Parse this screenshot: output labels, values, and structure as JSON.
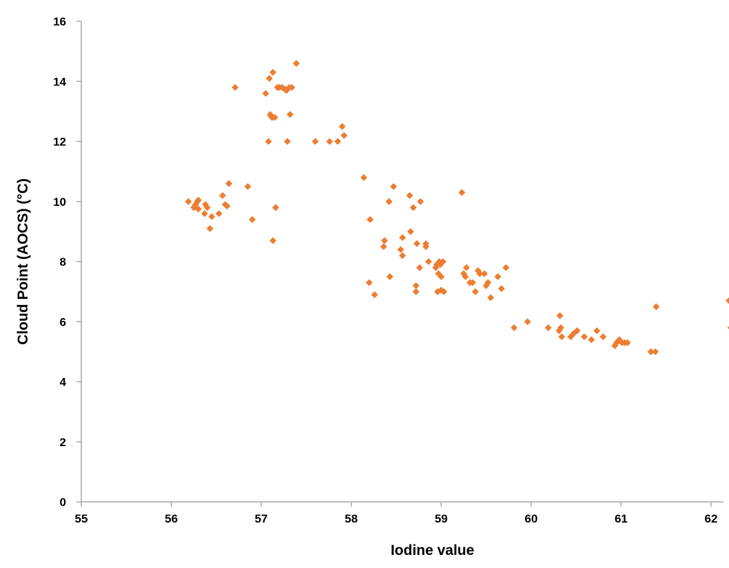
{
  "chart_data": {
    "type": "scatter",
    "title": "",
    "xlabel": "Iodine value",
    "ylabel": "Cloud Point (AOCS) (°C)",
    "xlim": [
      55,
      62.3
    ],
    "ylim": [
      0,
      16
    ],
    "xticks": [
      "55",
      "56",
      "57",
      "58",
      "59",
      "60",
      "61",
      "62"
    ],
    "yticks": [
      "0",
      "2",
      "4",
      "6",
      "8",
      "10",
      "12",
      "14",
      "16"
    ],
    "grid": false,
    "legend": "none",
    "marker": "diamond",
    "color": "#ed7d31",
    "series": [
      {
        "points": [
          [
            56.19,
            10.0
          ],
          [
            56.25,
            9.8
          ],
          [
            56.27,
            9.9
          ],
          [
            56.29,
            10.0
          ],
          [
            56.3,
            10.05
          ],
          [
            56.3,
            9.75
          ],
          [
            56.37,
            9.6
          ],
          [
            56.38,
            9.9
          ],
          [
            56.4,
            9.8
          ],
          [
            56.43,
            9.1
          ],
          [
            56.45,
            9.5
          ],
          [
            56.53,
            9.6
          ],
          [
            56.57,
            10.2
          ],
          [
            56.6,
            9.9
          ],
          [
            56.62,
            9.85
          ],
          [
            56.64,
            10.6
          ],
          [
            56.71,
            13.8
          ],
          [
            56.85,
            10.5
          ],
          [
            56.9,
            9.4
          ],
          [
            57.05,
            13.6
          ],
          [
            57.08,
            12.0
          ],
          [
            57.09,
            14.1
          ],
          [
            57.1,
            12.9
          ],
          [
            57.11,
            12.85
          ],
          [
            57.12,
            12.8
          ],
          [
            57.13,
            14.3
          ],
          [
            57.13,
            8.7
          ],
          [
            57.15,
            12.8
          ],
          [
            57.16,
            9.8
          ],
          [
            57.18,
            13.8
          ],
          [
            57.2,
            13.8
          ],
          [
            57.23,
            13.8
          ],
          [
            57.26,
            13.75
          ],
          [
            57.28,
            13.7
          ],
          [
            57.29,
            12.0
          ],
          [
            57.31,
            13.8
          ],
          [
            57.32,
            12.9
          ],
          [
            57.34,
            13.8
          ],
          [
            57.39,
            14.6
          ],
          [
            57.6,
            12.0
          ],
          [
            57.76,
            12.0
          ],
          [
            57.85,
            12.0
          ],
          [
            57.9,
            12.5
          ],
          [
            57.92,
            12.2
          ],
          [
            58.14,
            10.8
          ],
          [
            58.2,
            7.3
          ],
          [
            58.21,
            9.4
          ],
          [
            58.26,
            6.9
          ],
          [
            58.36,
            8.5
          ],
          [
            58.37,
            8.7
          ],
          [
            58.42,
            10.0
          ],
          [
            58.43,
            7.5
          ],
          [
            58.47,
            10.5
          ],
          [
            58.55,
            8.4
          ],
          [
            58.57,
            8.8
          ],
          [
            58.57,
            8.2
          ],
          [
            58.65,
            10.2
          ],
          [
            58.66,
            9.0
          ],
          [
            58.69,
            9.8
          ],
          [
            58.72,
            7.0
          ],
          [
            58.72,
            7.2
          ],
          [
            58.73,
            8.6
          ],
          [
            58.76,
            7.8
          ],
          [
            58.77,
            10.0
          ],
          [
            58.83,
            8.6
          ],
          [
            58.83,
            8.5
          ],
          [
            58.86,
            8.0
          ],
          [
            58.94,
            7.8
          ],
          [
            58.95,
            7.9
          ],
          [
            58.96,
            7.0
          ],
          [
            58.97,
            7.6
          ],
          [
            58.98,
            8.0
          ],
          [
            58.99,
            7.9
          ],
          [
            59.0,
            7.05
          ],
          [
            59.0,
            7.5
          ],
          [
            59.02,
            8.0
          ],
          [
            59.03,
            7.0
          ],
          [
            59.23,
            10.3
          ],
          [
            59.25,
            7.6
          ],
          [
            59.27,
            7.5
          ],
          [
            59.28,
            7.8
          ],
          [
            59.32,
            7.3
          ],
          [
            59.35,
            7.3
          ],
          [
            59.38,
            7.0
          ],
          [
            59.41,
            7.7
          ],
          [
            59.43,
            7.6
          ],
          [
            59.48,
            7.6
          ],
          [
            59.5,
            7.2
          ],
          [
            59.52,
            7.3
          ],
          [
            59.55,
            6.8
          ],
          [
            59.63,
            7.5
          ],
          [
            59.67,
            7.1
          ],
          [
            59.72,
            7.8
          ],
          [
            59.81,
            5.8
          ],
          [
            59.96,
            6.0
          ],
          [
            60.19,
            5.8
          ],
          [
            60.31,
            5.7
          ],
          [
            60.32,
            6.2
          ],
          [
            60.33,
            5.8
          ],
          [
            60.34,
            5.5
          ],
          [
            60.44,
            5.5
          ],
          [
            60.47,
            5.6
          ],
          [
            60.51,
            5.7
          ],
          [
            60.59,
            5.5
          ],
          [
            60.67,
            5.4
          ],
          [
            60.73,
            5.7
          ],
          [
            60.8,
            5.5
          ],
          [
            60.93,
            5.2
          ],
          [
            60.95,
            5.3
          ],
          [
            60.98,
            5.4
          ],
          [
            61.01,
            5.3
          ],
          [
            61.04,
            5.3
          ],
          [
            61.07,
            5.3
          ],
          [
            61.33,
            5.0
          ],
          [
            61.38,
            5.0
          ],
          [
            61.39,
            6.5
          ],
          [
            62.2,
            6.7
          ],
          [
            62.22,
            5.8
          ]
        ]
      }
    ]
  }
}
